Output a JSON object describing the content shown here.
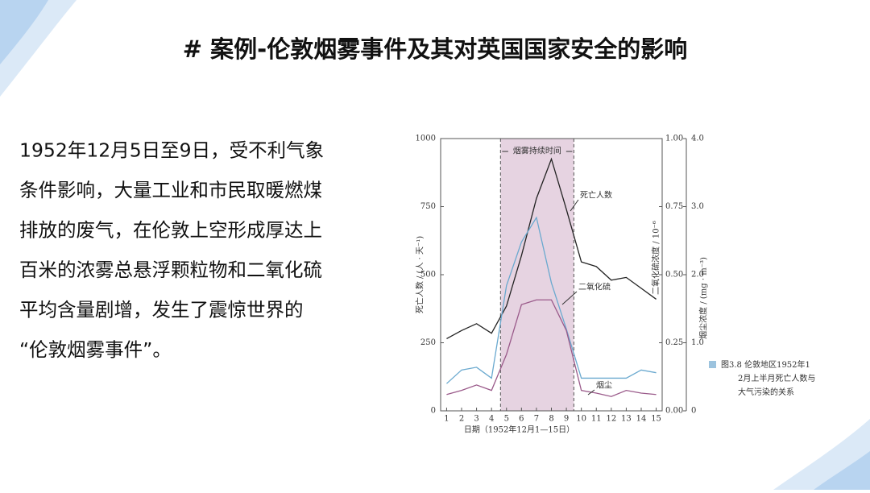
{
  "slide_title": "# 案例-伦敦烟雾事件及其对英国国家安全的影响",
  "body_lines": [
    "1952年12月5日至9日，受不利气象",
    "条件影响，大量工业和市民取暖燃煤",
    "排放的废气，在伦敦上空形成厚达上",
    "百米的浓雾总悬浮颗粒物和二氧化硫",
    "平均含量剧增，发生了震惊世界的",
    "“伦敦烟雾事件”。"
  ],
  "caption": "图3.8  伦敦地区1952年12月上半月死亡人数与大气污染的关系",
  "chart_data": {
    "type": "line",
    "x_label": "日期（1952年12月1—15日）",
    "y_label": "死亡人数 / (人 · 天⁻¹)",
    "y2_label": "二氧化硫浓度 / 10⁻⁶",
    "y3_label": "烟尘浓度 / (mg · m⁻³)",
    "x": [
      1,
      2,
      3,
      4,
      5,
      6,
      7,
      8,
      9,
      10,
      11,
      12,
      13,
      14,
      15
    ],
    "xlim": [
      0.6,
      15.4
    ],
    "xticks": [
      1,
      2,
      3,
      4,
      5,
      6,
      7,
      8,
      9,
      10,
      11,
      12,
      13,
      14,
      15
    ],
    "ylim": [
      0,
      1000
    ],
    "yticks": [
      0,
      250,
      500,
      750,
      1000
    ],
    "y2lim": [
      0,
      1
    ],
    "y2ticks": [
      {
        "value": 0,
        "label": "0.00"
      },
      {
        "value": 0.25,
        "label": "0.25"
      },
      {
        "value": 0.5,
        "label": "0.50"
      },
      {
        "value": 0.75,
        "label": "0.75"
      },
      {
        "value": 1,
        "label": "1.00"
      }
    ],
    "y3lim": [
      0,
      4
    ],
    "y3ticks": [
      0,
      {
        "value": 1,
        "label": "1.0"
      },
      {
        "value": 2,
        "label": "2.0"
      },
      {
        "value": 3,
        "label": "3.0"
      },
      {
        "value": 4,
        "label": "4.0"
      }
    ],
    "shaded_span": {
      "label": "烟雾持续时间",
      "range": [
        4.6,
        9.5
      ],
      "color": "#e6d3e1"
    },
    "series": [
      {
        "name": "死亡人数",
        "color": "#222222",
        "values": [
          265,
          295,
          320,
          285,
          385,
          570,
          780,
          925,
          740,
          547,
          530,
          480,
          490,
          450,
          410
        ]
      },
      {
        "name": "二氧化硫",
        "color": "#6aa9cf",
        "axis": "y2",
        "values": [
          0.1,
          0.15,
          0.16,
          0.12,
          0.46,
          0.62,
          0.71,
          0.47,
          0.3,
          0.12,
          0.12,
          0.12,
          0.12,
          0.15,
          0.14
        ]
      },
      {
        "name": "烟尘",
        "color": "#9a5a8a",
        "axis": "y3",
        "values": [
          0.24,
          0.3,
          0.38,
          0.3,
          0.83,
          1.56,
          1.63,
          1.63,
          1.18,
          0.3,
          0.26,
          0.21,
          0.3,
          0.26,
          0.24
        ]
      }
    ]
  }
}
